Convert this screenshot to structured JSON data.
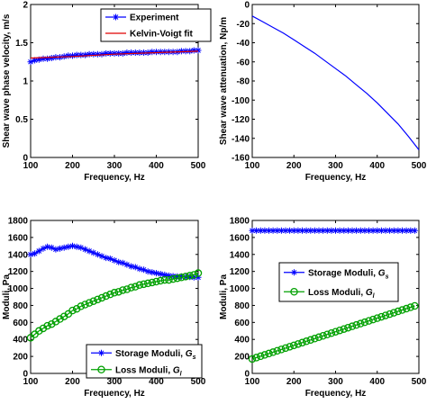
{
  "colors": {
    "blue": "#0000ff",
    "green": "#00a000",
    "red": "#e00000",
    "axis": "#000000"
  },
  "chart_data": [
    {
      "type": "line",
      "xlabel": "Frequency, Hz",
      "ylabel": "Shear wave phase velocity, m/s",
      "xlim": [
        100,
        500
      ],
      "ylim": [
        0,
        2
      ],
      "xticks": [
        "100",
        "200",
        "300",
        "400",
        "500"
      ],
      "yticks": [
        "0",
        "0.5",
        "1",
        "1.5",
        "2"
      ],
      "legend_position": "top-right",
      "series": [
        {
          "name": "Experiment",
          "marker": "star",
          "color": "#0000ff",
          "x": [
            100,
            110,
            120,
            130,
            140,
            150,
            160,
            170,
            180,
            190,
            200,
            210,
            220,
            230,
            240,
            250,
            260,
            270,
            280,
            290,
            300,
            310,
            320,
            330,
            340,
            350,
            360,
            370,
            380,
            390,
            400,
            410,
            420,
            430,
            440,
            450,
            460,
            470,
            480,
            490,
            500
          ],
          "values": [
            1.25,
            1.27,
            1.28,
            1.29,
            1.29,
            1.3,
            1.31,
            1.31,
            1.32,
            1.33,
            1.33,
            1.34,
            1.34,
            1.34,
            1.35,
            1.35,
            1.35,
            1.35,
            1.36,
            1.36,
            1.36,
            1.36,
            1.36,
            1.37,
            1.37,
            1.37,
            1.37,
            1.37,
            1.37,
            1.38,
            1.38,
            1.38,
            1.38,
            1.38,
            1.38,
            1.38,
            1.39,
            1.39,
            1.39,
            1.4,
            1.4
          ]
        },
        {
          "name": "Kelvin-Voigt fit",
          "marker": "none",
          "color": "#e00000",
          "x": [
            100,
            200,
            300,
            400,
            500
          ],
          "values": [
            1.3,
            1.32,
            1.35,
            1.37,
            1.39
          ]
        }
      ]
    },
    {
      "type": "line",
      "xlabel": "Frequency, Hz",
      "ylabel": "Shear wave attenuation, Np/m",
      "xlim": [
        100,
        500
      ],
      "ylim": [
        -160,
        0
      ],
      "xticks": [
        "100",
        "200",
        "300",
        "400",
        "500"
      ],
      "yticks": [
        "0",
        "-20",
        "-40",
        "-60",
        "-80",
        "-100",
        "-120",
        "-140",
        "-160"
      ],
      "series": [
        {
          "marker": "none",
          "color": "#0000ff",
          "x": [
            100,
            125,
            150,
            175,
            200,
            225,
            250,
            275,
            300,
            325,
            350,
            375,
            400,
            425,
            450,
            475,
            500
          ],
          "values": [
            -12,
            -18,
            -24,
            -30,
            -37,
            -44,
            -51,
            -59,
            -67,
            -75,
            -84,
            -93,
            -103,
            -114,
            -125,
            -138,
            -152
          ]
        }
      ]
    },
    {
      "type": "line",
      "xlabel": "Frequency, Hz",
      "ylabel": "Moduli, Pa",
      "xlim": [
        100,
        500
      ],
      "ylim": [
        0,
        1800
      ],
      "xticks": [
        "100",
        "200",
        "300",
        "400",
        "500"
      ],
      "yticks": [
        "0",
        "200",
        "400",
        "600",
        "800",
        "1000",
        "1200",
        "1400",
        "1600",
        "1800"
      ],
      "legend_position": "bottom-right",
      "series": [
        {
          "name": "Storage Moduli,",
          "symbol": "G",
          "subscript": "s",
          "marker": "star",
          "color": "#0000ff",
          "x": [
            100,
            110,
            120,
            130,
            140,
            150,
            160,
            170,
            180,
            190,
            200,
            210,
            220,
            230,
            240,
            250,
            260,
            270,
            280,
            290,
            300,
            310,
            320,
            330,
            340,
            350,
            360,
            370,
            380,
            390,
            400,
            410,
            420,
            430,
            440,
            450,
            460,
            470,
            480,
            490,
            500
          ],
          "values": [
            1400,
            1410,
            1440,
            1470,
            1490,
            1480,
            1460,
            1470,
            1480,
            1490,
            1500,
            1490,
            1480,
            1460,
            1440,
            1420,
            1400,
            1380,
            1360,
            1350,
            1330,
            1310,
            1300,
            1280,
            1260,
            1250,
            1230,
            1220,
            1200,
            1190,
            1180,
            1170,
            1160,
            1150,
            1145,
            1140,
            1140,
            1135,
            1135,
            1130,
            1130
          ]
        },
        {
          "name": "Loss Moduli,",
          "symbol": "G",
          "subscript": "l",
          "marker": "circle",
          "color": "#00a000",
          "x": [
            100,
            110,
            120,
            130,
            140,
            150,
            160,
            170,
            180,
            190,
            200,
            210,
            220,
            230,
            240,
            250,
            260,
            270,
            280,
            290,
            300,
            310,
            320,
            330,
            340,
            350,
            360,
            370,
            380,
            390,
            400,
            410,
            420,
            430,
            440,
            450,
            460,
            470,
            480,
            490,
            500
          ],
          "values": [
            420,
            460,
            500,
            530,
            560,
            580,
            610,
            640,
            670,
            700,
            740,
            760,
            790,
            810,
            830,
            850,
            870,
            890,
            910,
            930,
            950,
            960,
            980,
            990,
            1010,
            1020,
            1040,
            1050,
            1060,
            1070,
            1080,
            1090,
            1100,
            1100,
            1110,
            1120,
            1130,
            1140,
            1150,
            1160,
            1180
          ]
        }
      ]
    },
    {
      "type": "line",
      "xlabel": "Frequency, Hz",
      "ylabel": "Moduli, Pa",
      "xlim": [
        100,
        500
      ],
      "ylim": [
        0,
        1800
      ],
      "xticks": [
        "100",
        "200",
        "300",
        "400",
        "500"
      ],
      "yticks": [
        "0",
        "200",
        "400",
        "600",
        "800",
        "1000",
        "1200",
        "1400",
        "1600",
        "1800"
      ],
      "legend_position": "center-right",
      "series": [
        {
          "name": "Storage Moduli,",
          "symbol": "G",
          "subscript": "s",
          "marker": "star",
          "color": "#0000ff",
          "x": [
            100,
            110,
            120,
            130,
            140,
            150,
            160,
            170,
            180,
            190,
            200,
            210,
            220,
            230,
            240,
            250,
            260,
            270,
            280,
            290,
            300,
            310,
            320,
            330,
            340,
            350,
            360,
            370,
            380,
            390,
            400,
            410,
            420,
            430,
            440,
            450,
            460,
            470,
            480,
            490
          ],
          "values": [
            1680,
            1680,
            1680,
            1680,
            1680,
            1680,
            1680,
            1680,
            1680,
            1680,
            1680,
            1680,
            1680,
            1680,
            1680,
            1680,
            1680,
            1680,
            1680,
            1680,
            1680,
            1680,
            1680,
            1680,
            1680,
            1680,
            1680,
            1680,
            1680,
            1680,
            1680,
            1680,
            1680,
            1680,
            1680,
            1680,
            1680,
            1680,
            1680,
            1680
          ]
        },
        {
          "name": "Loss Moduli,",
          "symbol": "G",
          "subscript": "l",
          "marker": "circle",
          "color": "#00a000",
          "x": [
            100,
            110,
            120,
            130,
            140,
            150,
            160,
            170,
            180,
            190,
            200,
            210,
            220,
            230,
            240,
            250,
            260,
            270,
            280,
            290,
            300,
            310,
            320,
            330,
            340,
            350,
            360,
            370,
            380,
            390,
            400,
            410,
            420,
            430,
            440,
            450,
            460,
            470,
            480,
            490
          ],
          "values": [
            170,
            186,
            202,
            218,
            234,
            250,
            266,
            282,
            298,
            314,
            330,
            346,
            362,
            378,
            394,
            410,
            426,
            442,
            458,
            474,
            490,
            506,
            522,
            538,
            554,
            570,
            586,
            602,
            618,
            634,
            650,
            666,
            682,
            698,
            714,
            730,
            746,
            762,
            778,
            794
          ]
        }
      ]
    }
  ]
}
